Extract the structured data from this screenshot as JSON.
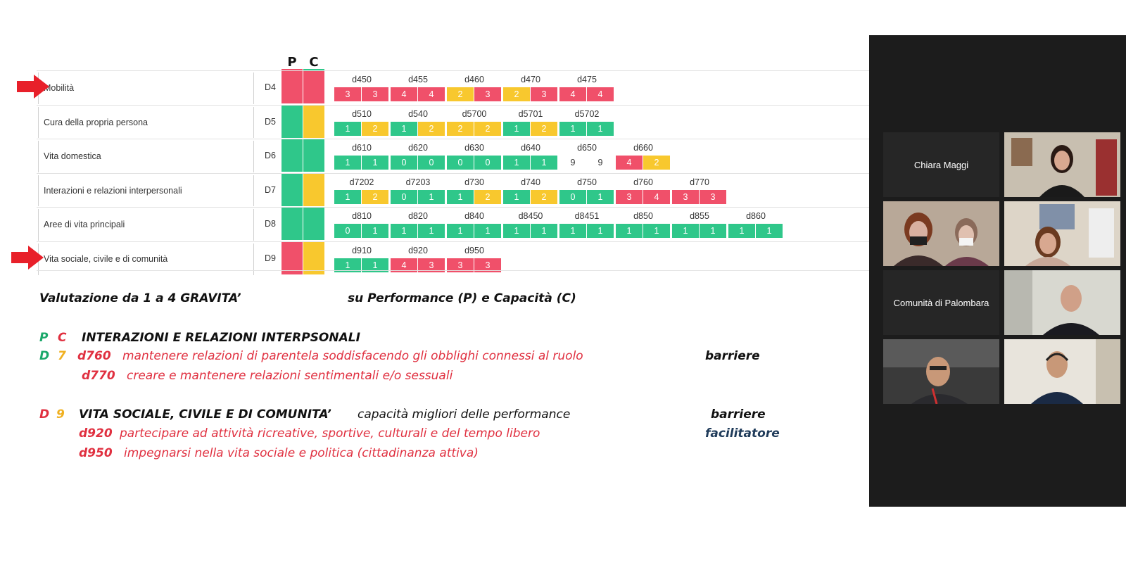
{
  "table": {
    "p_header": "P",
    "c_header": "C",
    "rows": [
      {
        "label": "Mobilità",
        "code": "D4",
        "arrow": true,
        "p": "red",
        "c": "red",
        "items": [
          {
            "code": "d450",
            "s": [
              "3",
              "3"
            ],
            "c": [
              "red",
              "red"
            ]
          },
          {
            "code": "d455",
            "s": [
              "4",
              "4"
            ],
            "c": [
              "red",
              "red"
            ]
          },
          {
            "code": "d460",
            "s": [
              "2",
              "3"
            ],
            "c": [
              "yellow",
              "red"
            ]
          },
          {
            "code": "d470",
            "s": [
              "2",
              "3"
            ],
            "c": [
              "yellow",
              "red"
            ]
          },
          {
            "code": "d475",
            "s": [
              "4",
              "4"
            ],
            "c": [
              "red",
              "red"
            ]
          }
        ]
      },
      {
        "label": "Cura della propria persona",
        "code": "D5",
        "arrow": false,
        "p": "green",
        "c": "yellow",
        "items": [
          {
            "code": "d510",
            "s": [
              "1",
              "2"
            ],
            "c": [
              "green",
              "yellow"
            ]
          },
          {
            "code": "d540",
            "s": [
              "1",
              "2"
            ],
            "c": [
              "green",
              "yellow"
            ]
          },
          {
            "code": "d5700",
            "s": [
              "2",
              "2"
            ],
            "c": [
              "yellow",
              "yellow"
            ]
          },
          {
            "code": "d5701",
            "s": [
              "1",
              "2"
            ],
            "c": [
              "green",
              "yellow"
            ]
          },
          {
            "code": "d5702",
            "s": [
              "1",
              "1"
            ],
            "c": [
              "green",
              "green"
            ]
          }
        ]
      },
      {
        "label": "Vita domestica",
        "code": "D6",
        "arrow": false,
        "p": "green",
        "c": "green",
        "items": [
          {
            "code": "d610",
            "s": [
              "1",
              "1"
            ],
            "c": [
              "green",
              "green"
            ]
          },
          {
            "code": "d620",
            "s": [
              "0",
              "0"
            ],
            "c": [
              "green",
              "green"
            ]
          },
          {
            "code": "d630",
            "s": [
              "0",
              "0"
            ],
            "c": [
              "green",
              "green"
            ]
          },
          {
            "code": "d640",
            "s": [
              "1",
              "1"
            ],
            "c": [
              "green",
              "green"
            ]
          },
          {
            "code": "d650",
            "s": [
              "9",
              "9"
            ],
            "c": [
              "none",
              "none"
            ]
          },
          {
            "code": "d660",
            "s": [
              "4",
              "2"
            ],
            "c": [
              "red",
              "yellow"
            ]
          }
        ]
      },
      {
        "label": "Interazioni e relazioni interpersonali",
        "code": "D7",
        "arrow": false,
        "p": "green",
        "c": "yellow",
        "items": [
          {
            "code": "d7202",
            "s": [
              "1",
              "2"
            ],
            "c": [
              "green",
              "yellow"
            ]
          },
          {
            "code": "d7203",
            "s": [
              "0",
              "1"
            ],
            "c": [
              "green",
              "green"
            ]
          },
          {
            "code": "d730",
            "s": [
              "1",
              "2"
            ],
            "c": [
              "green",
              "yellow"
            ]
          },
          {
            "code": "d740",
            "s": [
              "1",
              "2"
            ],
            "c": [
              "green",
              "yellow"
            ]
          },
          {
            "code": "d750",
            "s": [
              "0",
              "1"
            ],
            "c": [
              "green",
              "green"
            ]
          },
          {
            "code": "d760",
            "s": [
              "3",
              "4"
            ],
            "c": [
              "red",
              "red"
            ]
          },
          {
            "code": "d770",
            "s": [
              "3",
              "3"
            ],
            "c": [
              "red",
              "red"
            ]
          }
        ]
      },
      {
        "label": "Aree di vita principali",
        "code": "D8",
        "arrow": false,
        "p": "green",
        "c": "green",
        "items": [
          {
            "code": "d810",
            "s": [
              "0",
              "1"
            ],
            "c": [
              "green",
              "green"
            ]
          },
          {
            "code": "d820",
            "s": [
              "1",
              "1"
            ],
            "c": [
              "green",
              "green"
            ]
          },
          {
            "code": "d840",
            "s": [
              "1",
              "1"
            ],
            "c": [
              "green",
              "green"
            ]
          },
          {
            "code": "d8450",
            "s": [
              "1",
              "1"
            ],
            "c": [
              "green",
              "green"
            ]
          },
          {
            "code": "d8451",
            "s": [
              "1",
              "1"
            ],
            "c": [
              "green",
              "green"
            ]
          },
          {
            "code": "d850",
            "s": [
              "1",
              "1"
            ],
            "c": [
              "green",
              "green"
            ]
          },
          {
            "code": "d855",
            "s": [
              "1",
              "1"
            ],
            "c": [
              "green",
              "green"
            ]
          },
          {
            "code": "d860",
            "s": [
              "1",
              "1"
            ],
            "c": [
              "green",
              "green"
            ]
          }
        ]
      },
      {
        "label": "Vita sociale, civile e di comunità",
        "code": "D9",
        "arrow": true,
        "p": "red",
        "c": "yellow",
        "items": [
          {
            "code": "d910",
            "s": [
              "1",
              "1"
            ],
            "c": [
              "green",
              "green"
            ]
          },
          {
            "code": "d920",
            "s": [
              "4",
              "3"
            ],
            "c": [
              "red",
              "red"
            ]
          },
          {
            "code": "d950",
            "s": [
              "3",
              "3"
            ],
            "c": [
              "red",
              "red"
            ]
          }
        ]
      }
    ]
  },
  "colors": {
    "red": "#f0506a",
    "green": "#2fc78a",
    "yellow": "#f8c82e",
    "arrow": "#e8202a"
  },
  "notes": {
    "valutazione": "Valutazione da   1  a 4  GRAVITA’",
    "su_performance": "su Performance (P) e Capacità (C)",
    "pc_p": "P",
    "pc_c": "C",
    "section1_title": "INTERAZIONI E RELAZIONI INTERPSONALI",
    "d7_d": "D",
    "d7_7": "7",
    "d760_code": "d760",
    "d760_text": "mantenere relazioni di parentela soddisfacendo gli obblighi connessi al ruolo",
    "barriere1": "barriere",
    "d770_code": "d770",
    "d770_text": "creare e mantenere  relazioni sentimentali e/o sessuali",
    "d9_d": "D",
    "d9_9": "9",
    "section2_title": "VITA SOCIALE, CIVILE  E  DI  COMUNITA’",
    "section2_sub": "capacità migliori delle performance",
    "barriere2": "barriere",
    "d920_code": "d920",
    "d920_text": "partecipare ad attività ricreative, sportive, culturali e del tempo libero",
    "facilitatore": "facilitatore",
    "d950_code": "d950",
    "d950_text": "impegnarsi nella vita sociale e politica (cittadinanza attiva)"
  },
  "participants": {
    "chiara": "Chiara Maggi",
    "comunita": "Comunità di Palombara"
  }
}
